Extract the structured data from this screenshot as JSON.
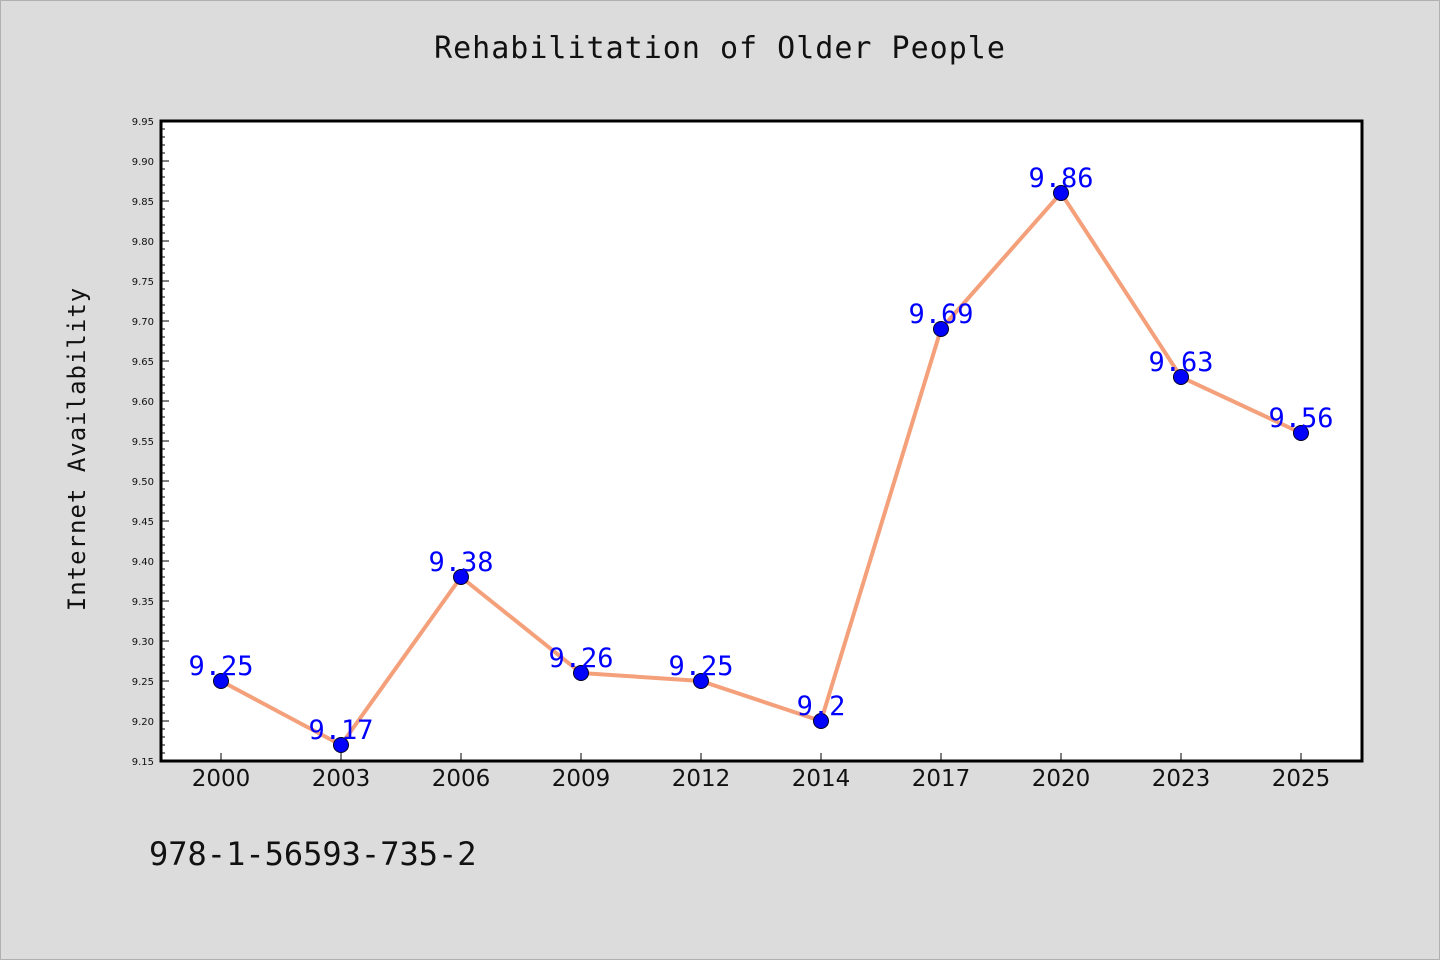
{
  "chart_data": {
    "type": "line",
    "title": "Rehabilitation of Older People",
    "xlabel": "",
    "ylabel": "Internet Availability",
    "categories": [
      "2000",
      "2003",
      "2006",
      "2009",
      "2012",
      "2014",
      "2017",
      "2020",
      "2023",
      "2025"
    ],
    "series": [
      {
        "values": [
          9.25,
          9.17,
          9.38,
          9.26,
          9.25,
          9.2,
          9.69,
          9.86,
          9.63,
          9.56
        ],
        "data_labels": [
          "9.25",
          "9.17",
          "9.38",
          "9.26",
          "9.25",
          "9.2",
          "9.69",
          "9.86",
          "9.63",
          "9.56"
        ]
      }
    ],
    "ylim": [
      9.15,
      9.95
    ],
    "yticks": [
      "9.15",
      "9.20",
      "9.25",
      "9.30",
      "9.35",
      "9.40",
      "9.45",
      "9.50",
      "9.55",
      "9.60",
      "9.65",
      "9.70",
      "9.75",
      "9.80",
      "9.85",
      "9.90",
      "9.95"
    ],
    "grid": false,
    "legend": "none",
    "colors": {
      "line": "#f4a07a",
      "marker": "#0000ff",
      "data_label": "#0000ff",
      "background": "#dcdcdc",
      "plot_background": "#ffffff"
    }
  },
  "annotation": {
    "isbn": "978-1-56593-735-2"
  }
}
